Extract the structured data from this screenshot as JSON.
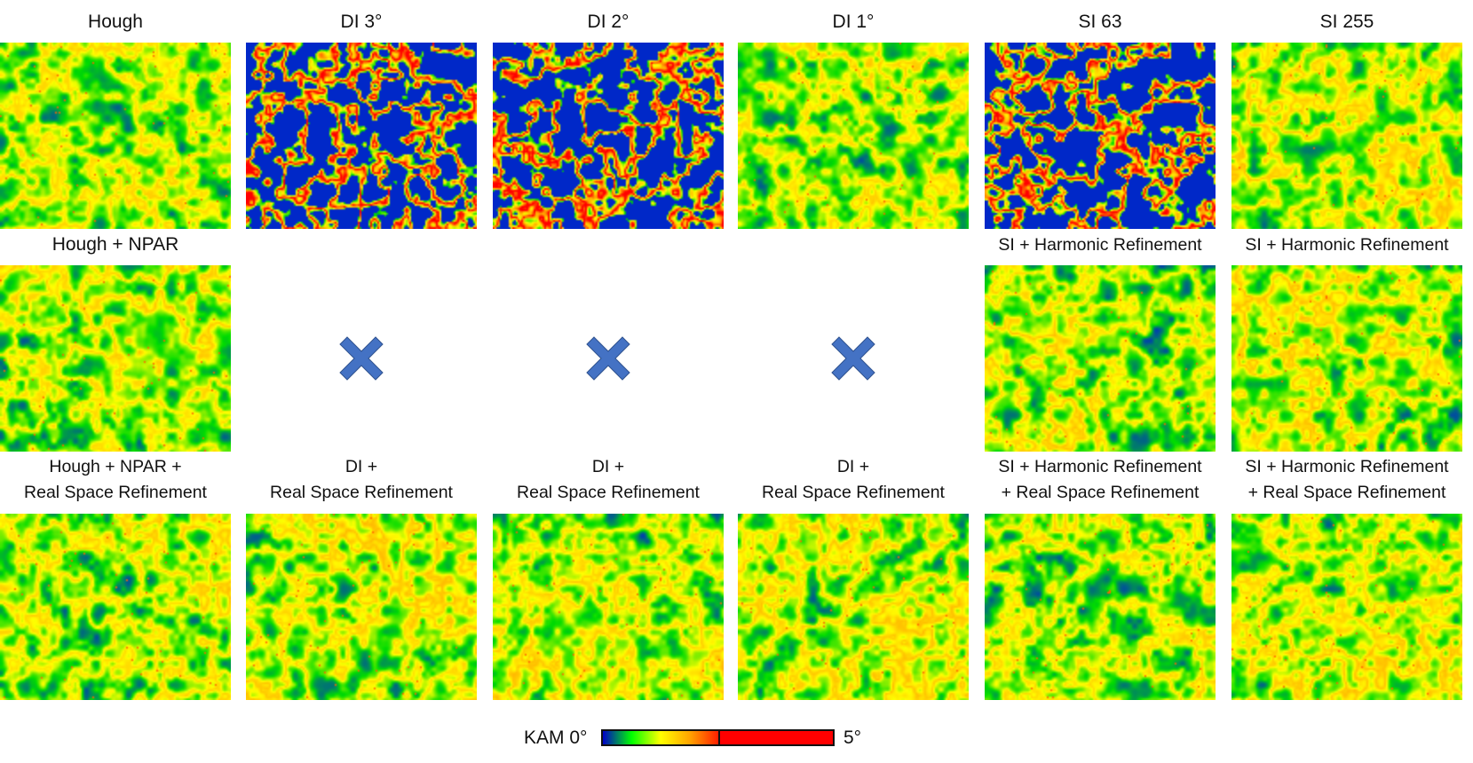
{
  "columns": [
    {
      "title": "Hough",
      "row2_label": [
        "Hough + NPAR"
      ],
      "row3_label": [
        "Hough + NPAR +",
        "Real Space Refinement"
      ],
      "row2_available": true
    },
    {
      "title": "DI 3°",
      "row2_label": [],
      "row3_label": [
        "DI +",
        "Real Space Refinement"
      ],
      "row2_available": false
    },
    {
      "title": "DI 2°",
      "row2_label": [],
      "row3_label": [
        "DI +",
        "Real Space Refinement"
      ],
      "row2_available": false
    },
    {
      "title": "DI 1°",
      "row2_label": [],
      "row3_label": [
        "DI +",
        "Real Space Refinement"
      ],
      "row2_available": false
    },
    {
      "title": "SI 63",
      "row2_label": [
        "SI + Harmonic Refinement"
      ],
      "row3_label": [
        "SI + Harmonic Refinement",
        "+ Real Space Refinement"
      ],
      "row2_available": true
    },
    {
      "title": "SI 255",
      "row2_label": [
        "SI + Harmonic Refinement"
      ],
      "row3_label": [
        "SI + Harmonic Refinement",
        "+ Real Space Refinement"
      ],
      "row2_available": true
    }
  ],
  "colorbar": {
    "label_min": "KAM 0°",
    "label_max": "5°",
    "min": 0,
    "max": 5,
    "colors": [
      "#0000c8",
      "#00ff00",
      "#ffff00",
      "#ffa500",
      "#ff0000"
    ]
  },
  "unavailable_icon": "cross-icon",
  "cross_color": "#4472C4"
}
